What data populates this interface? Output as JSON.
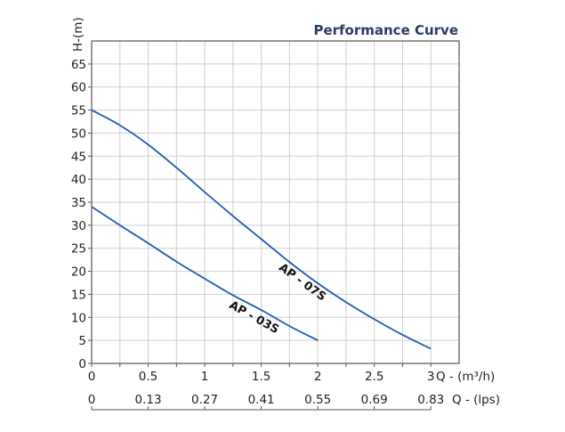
{
  "chart_data": {
    "type": "line",
    "title": "Performance Curve",
    "ylabel": "H-(m)",
    "xlabel": "Q - (m³/h)",
    "x2label": "Q - (lps)",
    "ylim": [
      0,
      70
    ],
    "xlim": [
      0,
      3.25
    ],
    "grid": true,
    "yticks": [
      0,
      5,
      10,
      15,
      20,
      25,
      30,
      35,
      40,
      45,
      50,
      55,
      60,
      65
    ],
    "xticks": [
      0,
      0.5,
      1,
      1.5,
      2,
      2.5,
      3
    ],
    "x2ticks": [
      "0",
      "0.13",
      "0.27",
      "0.41",
      "0.55",
      "0.69",
      "0.83"
    ],
    "series": [
      {
        "name": "AP - 07S",
        "color": "#1f5bb0",
        "x": [
          0,
          0.25,
          0.5,
          0.75,
          1,
          1.25,
          1.5,
          1.75,
          2,
          2.25,
          2.5,
          2.75,
          3
        ],
        "y": [
          55,
          51.7,
          47.5,
          42.5,
          37.2,
          32,
          27,
          22,
          17.4,
          13.3,
          9.6,
          6.2,
          3.2
        ]
      },
      {
        "name": "AP - 03S",
        "color": "#1f5bb0",
        "x": [
          0,
          0.25,
          0.5,
          0.75,
          1,
          1.25,
          1.5,
          1.75,
          2
        ],
        "y": [
          34,
          30,
          26.1,
          22.1,
          18.4,
          14.8,
          11.6,
          8.1,
          5
        ]
      }
    ]
  }
}
